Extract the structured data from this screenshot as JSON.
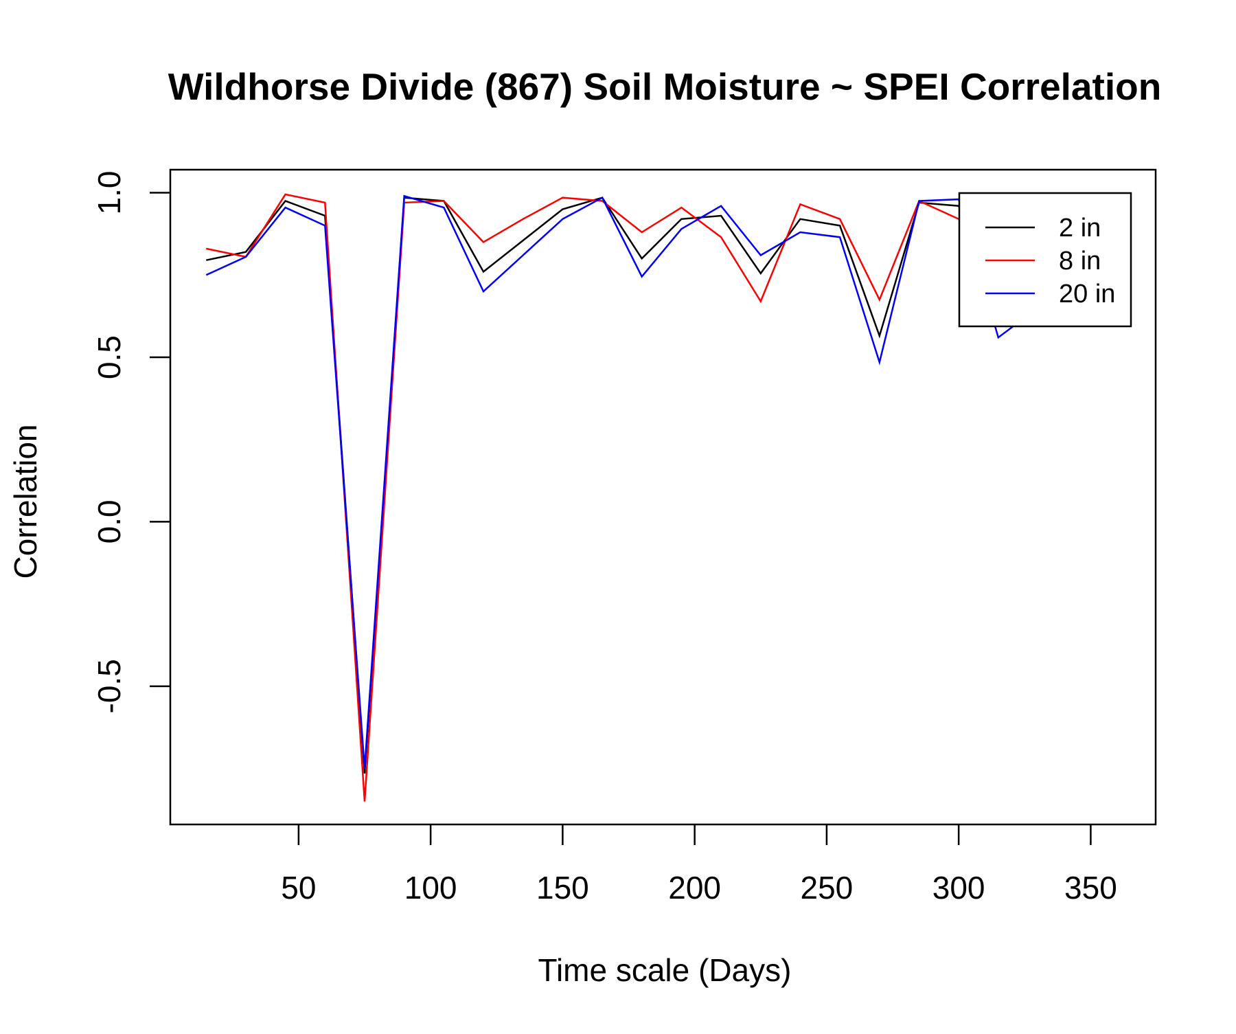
{
  "chart_data": {
    "type": "line",
    "title": "Wildhorse Divide (867) Soil Moisture ~ SPEI Correlation",
    "xlabel": "Time scale (Days)",
    "ylabel": "Correlation",
    "xlim": [
      1.4,
      374.6
    ],
    "ylim": [
      -0.92,
      1.07
    ],
    "xticks": [
      50,
      100,
      150,
      200,
      250,
      300,
      350
    ],
    "xtick_labels": [
      "50",
      "100",
      "150",
      "200",
      "250",
      "300",
      "350"
    ],
    "yticks": [
      -0.5,
      0.0,
      0.5,
      1.0
    ],
    "ytick_labels": [
      "-0.5",
      "0.0",
      "0.5",
      "1.0"
    ],
    "grid": false,
    "legend_position": "top-right",
    "x": [
      15,
      30,
      45,
      60,
      75,
      90,
      105,
      120,
      135,
      150,
      165,
      180,
      195,
      210,
      225,
      240,
      255,
      270,
      285,
      300,
      315,
      330,
      345,
      360
    ],
    "series": [
      {
        "name": "2 in",
        "color": "#000000",
        "values": [
          0.795,
          0.82,
          0.975,
          0.93,
          -0.765,
          0.985,
          0.975,
          0.76,
          0.855,
          0.95,
          0.985,
          0.8,
          0.92,
          0.93,
          0.755,
          0.92,
          0.9,
          0.565,
          0.97,
          0.96,
          0.61,
          0.68,
          0.71,
          0.72
        ]
      },
      {
        "name": "8 in",
        "color": "#ff0000",
        "values": [
          0.83,
          0.805,
          0.995,
          0.97,
          -0.85,
          0.97,
          0.975,
          0.85,
          0.92,
          0.985,
          0.975,
          0.88,
          0.955,
          0.865,
          0.67,
          0.965,
          0.92,
          0.675,
          0.975,
          0.92,
          0.63,
          0.68,
          0.7,
          0.71
        ]
      },
      {
        "name": "20 in",
        "color": "#0000ff",
        "values": [
          0.75,
          0.805,
          0.955,
          0.9,
          -0.75,
          0.99,
          0.955,
          0.7,
          0.81,
          0.92,
          0.985,
          0.745,
          0.89,
          0.96,
          0.81,
          0.88,
          0.865,
          0.485,
          0.975,
          0.98,
          0.56,
          0.65,
          0.68,
          0.7
        ]
      }
    ]
  }
}
